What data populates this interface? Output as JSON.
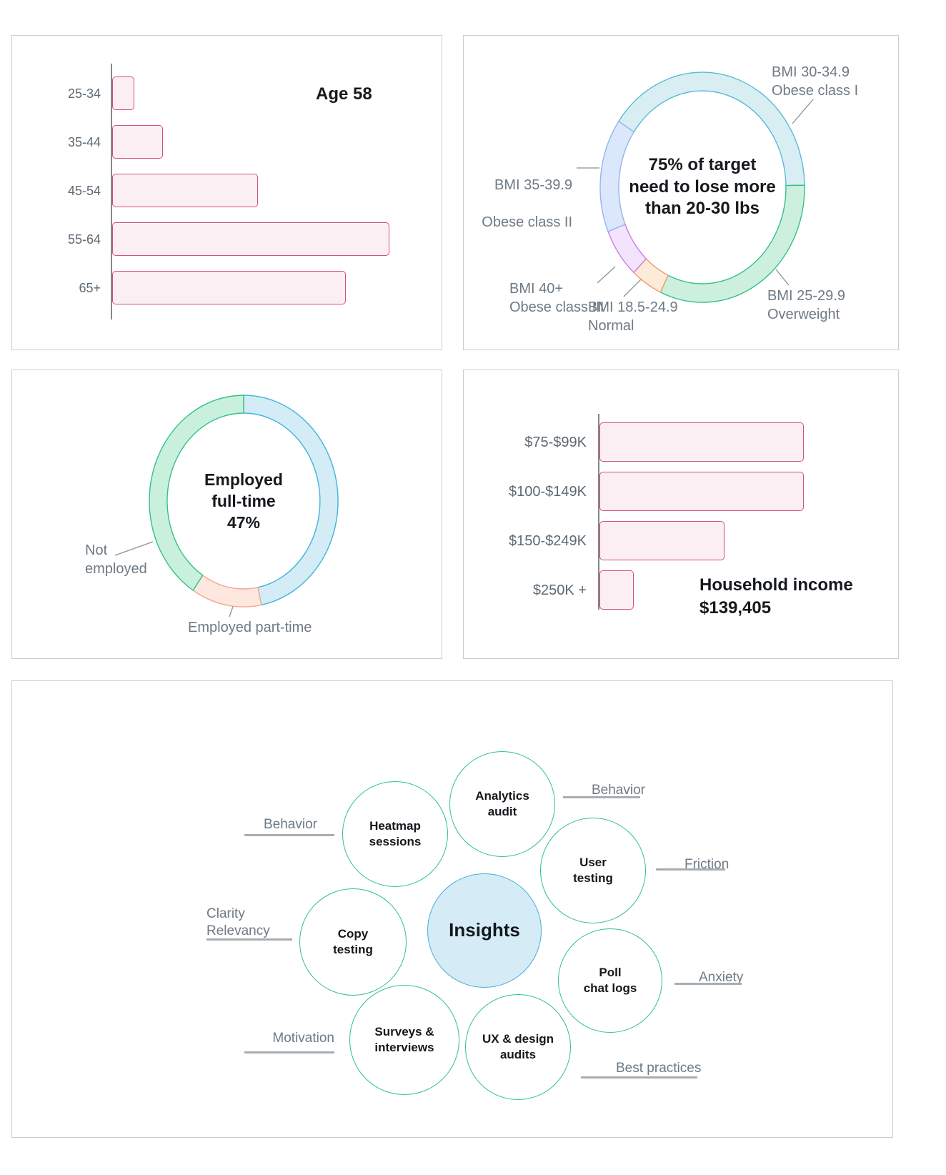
{
  "colors": {
    "bar_fill": "#fbeff4",
    "bar_border": "#d34f7c",
    "axis": "#82898f",
    "label_gray": "#6e7a85",
    "underline_gray": "#a7adb3",
    "diagram_circle_stroke": "#2ec28e",
    "insights_fill": "#d5ecf7",
    "insights_stroke": "#46aed6",
    "tick_line": "#8a9199"
  },
  "age_chart": {
    "title": "Age 58",
    "categories": [
      "25-34",
      "35-44",
      "45-54",
      "55-64",
      "65+"
    ]
  },
  "bmi_chart": {
    "center_text": "75% of target\nneed to lose more\nthan 20-30 lbs",
    "labels": {
      "obese1": "BMI 30-34.9\nObese class I",
      "obese2": "BMI 35-39.9",
      "obese2_line2": "Obese class II",
      "obese3": "BMI 40+\nObese class III",
      "normal": "BMI 18.5-24.9\nNormal",
      "overweight": "BMI 25-29.9\nOverweight"
    },
    "segments": [
      {
        "id": "obese-class-1",
        "label": "BMI 30-34.9 Obese class I",
        "percent": 40,
        "fill": "#d9eef3",
        "stroke": "#56bcd6"
      },
      {
        "id": "overweight",
        "label": "BMI 25-29.9 Overweight",
        "percent": 32,
        "fill": "#cdf0de",
        "stroke": "#36bf8b"
      },
      {
        "id": "normal",
        "label": "BMI 18.5-24.9 Normal",
        "percent": 5,
        "fill": "#fdead9",
        "stroke": "#ee9c6a"
      },
      {
        "id": "obese-class-3",
        "label": "BMI 40+ Obese class III",
        "percent": 7,
        "fill": "#f3e3fc",
        "stroke": "#c77fe3"
      },
      {
        "id": "obese-class-2",
        "label": "BMI 35-39.9 Obese class II",
        "percent": 16,
        "fill": "#dbe7fb",
        "stroke": "#92b6ee"
      }
    ]
  },
  "employment_chart": {
    "center_text": "Employed\nfull-time\n47%",
    "labels": {
      "not_employed": "Not\nemployed",
      "part_time": "Employed part-time"
    },
    "segments": [
      {
        "id": "employed-full-time",
        "label": "Employed full-time",
        "percent": 47,
        "fill": "#d3ecf6",
        "stroke": "#41b4da"
      },
      {
        "id": "employed-part-time",
        "label": "Employed part-time",
        "percent": 12,
        "fill": "#fde7de",
        "stroke": "#f2a88d"
      },
      {
        "id": "not-employed",
        "label": "Not employed",
        "percent": 41,
        "fill": "#c9f0dd",
        "stroke": "#36c08c"
      }
    ]
  },
  "income_chart": {
    "title": "Household income\n$139,405",
    "categories": [
      "$75-$99K",
      "$100-$149K",
      "$150-$249K",
      "$250K +"
    ]
  },
  "diagram": {
    "center": "Insights",
    "circles": [
      {
        "id": "heatmap-sessions",
        "text": "Heatmap\nsessions"
      },
      {
        "id": "analytics-audit",
        "text": "Analytics\naudit"
      },
      {
        "id": "user-testing",
        "text": "User\ntesting"
      },
      {
        "id": "copy-testing",
        "text": "Copy\ntesting"
      },
      {
        "id": "poll-chat-logs",
        "text": "Poll\nchat logs"
      },
      {
        "id": "surveys-interviews",
        "text": "Surveys &\ninterviews"
      },
      {
        "id": "ux-design-audits",
        "text": "UX & design\naudits"
      }
    ],
    "labels": {
      "behavior_left": "Behavior",
      "behavior_right": "Behavior",
      "friction": "Friction",
      "clarity_relevancy": "Clarity\nRelevancy",
      "anxiety": "Anxiety",
      "motivation": "Motivation",
      "best_practices": "Best practices"
    }
  },
  "chart_data": [
    {
      "type": "bar",
      "orientation": "horizontal",
      "title": "Age 58",
      "categories": [
        "25-34",
        "35-44",
        "45-54",
        "55-64",
        "65+"
      ],
      "values": [
        3,
        7,
        20,
        38,
        32
      ],
      "value_note": "estimated percent, no axis scale shown",
      "xlabel": "",
      "ylabel": "",
      "grid": false
    },
    {
      "type": "pie",
      "subtype": "donut",
      "title": "75% of target need to lose more than 20-30 lbs",
      "categories": [
        "BMI 30-34.9 Obese class I",
        "BMI 25-29.9 Overweight",
        "BMI 18.5-24.9 Normal",
        "BMI 40+ Obese class III",
        "BMI 35-39.9 Obese class II"
      ],
      "values": [
        40,
        32,
        5,
        7,
        16
      ],
      "value_note": "estimated percent from arc angles"
    },
    {
      "type": "pie",
      "subtype": "donut",
      "title": "Employed full-time 47%",
      "categories": [
        "Employed full-time",
        "Employed part-time",
        "Not employed"
      ],
      "values": [
        47,
        12,
        41
      ],
      "value_note": "47% labeled; others estimated from arc angles"
    },
    {
      "type": "bar",
      "orientation": "horizontal",
      "title": "Household income $139,405",
      "categories": [
        "$75-$99K",
        "$100-$149K",
        "$150-$249K",
        "$250K +"
      ],
      "values": [
        36,
        36,
        22,
        6
      ],
      "value_note": "estimated percent, no axis scale shown",
      "xlabel": "",
      "ylabel": "",
      "grid": false
    }
  ]
}
